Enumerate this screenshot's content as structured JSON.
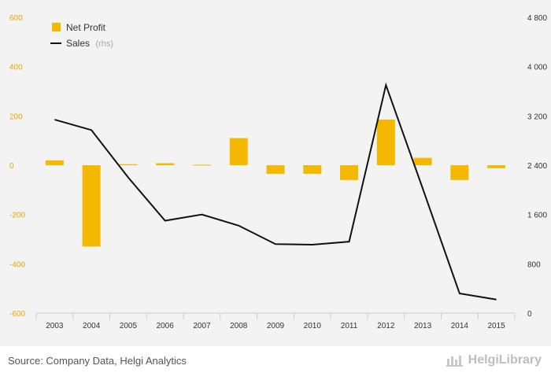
{
  "chart_data": {
    "type": "bar",
    "categories": [
      "2003",
      "2004",
      "2005",
      "2006",
      "2007",
      "2008",
      "2009",
      "2010",
      "2011",
      "2012",
      "2013",
      "2014",
      "2015"
    ],
    "series": [
      {
        "name": "Net Profit",
        "type": "bar",
        "axis": "left",
        "color": "#f5b800",
        "values": [
          20,
          -330,
          4,
          8,
          2,
          110,
          -35,
          -35,
          -60,
          185,
          30,
          -60,
          -12
        ]
      },
      {
        "name": "Sales",
        "name_suffix": "(rhs)",
        "type": "line",
        "axis": "right",
        "color": "#111111",
        "values": [
          3140,
          2970,
          2200,
          1500,
          1600,
          1420,
          1120,
          1110,
          1160,
          3700,
          2020,
          320,
          220
        ]
      }
    ],
    "y_left": {
      "ylim": [
        -600,
        600
      ],
      "ticks": [
        -600,
        -400,
        -200,
        0,
        200,
        400,
        600
      ],
      "tick_labels": [
        "-600",
        "-400",
        "-200",
        "0",
        "200",
        "400",
        "600"
      ]
    },
    "y_right": {
      "ylim": [
        0,
        4800
      ],
      "ticks": [
        0,
        800,
        1600,
        2400,
        3200,
        4000,
        4800
      ],
      "tick_labels": [
        "0",
        "800",
        "1 600",
        "2 400",
        "3 200",
        "4 000",
        "4 800"
      ]
    },
    "legend": {
      "placement": "top-left"
    },
    "grid": false
  },
  "footer": {
    "source": "Source: Company Data, Helgi Analytics",
    "brand": "HelgiLibrary"
  },
  "colors": {
    "background": "#f3f3f3",
    "left_axis_text": "#f0a500"
  },
  "icons": {
    "brand_logo": "helgi-logo-icon"
  }
}
